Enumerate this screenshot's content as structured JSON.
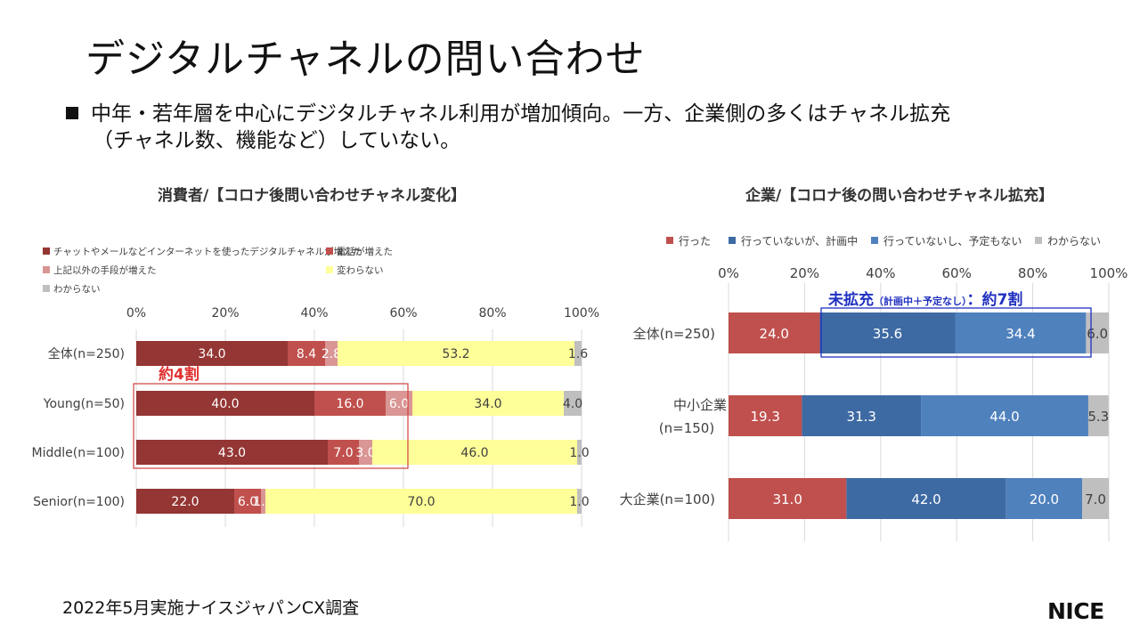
{
  "slide": {
    "title": "デジタルチャネルの問い合わせ",
    "bullet_line1": "中年・若年層を中心にデジタルチャネル利用が増加傾向。一方、企業側の多くはチャネル拡充",
    "bullet_line2": "（チャネル数、機能など）していない。",
    "footer": "2022年5月実施ナイスジャパンCX調査",
    "logo": "NICE"
  },
  "chart_data": [
    {
      "type": "bar",
      "orientation": "horizontal-stacked-percent",
      "title": "消費者/【コロナ後問い合わせチャネル変化】",
      "categories": [
        "全体(n=250)",
        "Young(n=50)",
        "Middle(n=100)",
        "Senior(n=100)"
      ],
      "series": [
        {
          "name": "チャットやメールなどインターネットを使ったデジタルチャネルが増えた",
          "color": "#943634",
          "label_color": "#ffffff",
          "values": [
            34.0,
            40.0,
            43.0,
            22.0
          ]
        },
        {
          "name": "電話が増えた",
          "color": "#c0504d",
          "label_color": "#ffffff",
          "values": [
            8.4,
            16.0,
            7.0,
            6.0
          ]
        },
        {
          "name": "上記以外の手段が増えた",
          "color": "#d99694",
          "label_color": "#ffffff",
          "values": [
            2.8,
            6.0,
            3.0,
            1.0
          ]
        },
        {
          "name": "変わらない",
          "color": "#ffff99",
          "label_color": "#404040",
          "values": [
            53.2,
            34.0,
            46.0,
            70.0
          ]
        },
        {
          "name": "わからない",
          "color": "#bfbfbf",
          "label_color": "#404040",
          "values": [
            1.6,
            4.0,
            1.0,
            1.0
          ]
        }
      ],
      "xlim": [
        0,
        100
      ],
      "xticks": [
        "0%",
        "20%",
        "40%",
        "60%",
        "80%",
        "100%"
      ],
      "legend_position": "top",
      "annotation": {
        "text": "約4割",
        "color": "#e03030"
      }
    },
    {
      "type": "bar",
      "orientation": "horizontal-stacked-percent",
      "title": "企業/【コロナ後の問い合わせチャネル拡充】",
      "categories": [
        [
          "全体(n=250)"
        ],
        [
          "中小企業",
          "(n=150)"
        ],
        [
          "大企業(n=100)"
        ]
      ],
      "series": [
        {
          "name": "行った",
          "color": "#c0504d",
          "label_color": "#ffffff",
          "values": [
            24.0,
            19.3,
            31.0
          ]
        },
        {
          "name": "行っていないが、計画中",
          "color": "#3e6aa3",
          "label_color": "#ffffff",
          "values": [
            35.6,
            31.3,
            42.0
          ]
        },
        {
          "name": "行っていないし、予定もない",
          "color": "#4f81bd",
          "label_color": "#ffffff",
          "values": [
            34.4,
            44.0,
            20.0
          ]
        },
        {
          "name": "わからない",
          "color": "#bfbfbf",
          "label_color": "#404040",
          "values": [
            6.0,
            5.3,
            7.0
          ]
        }
      ],
      "xlim": [
        0,
        100
      ],
      "xticks": [
        "0%",
        "20%",
        "40%",
        "60%",
        "80%",
        "100%"
      ],
      "legend_position": "top",
      "annotation": {
        "main": "未拡充",
        "sub": "（計画中＋予定なし）",
        "tail": "：約7割",
        "color": "#2030c0"
      }
    }
  ]
}
